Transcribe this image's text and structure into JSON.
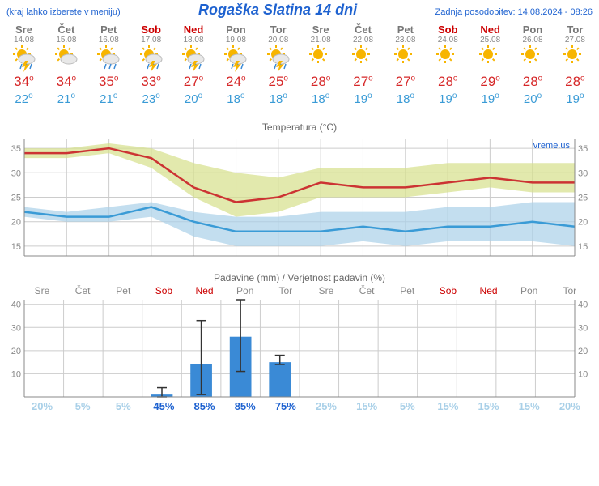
{
  "header": {
    "hint": "(kraj lahko izberete v meniju)",
    "title": "Rogaška Slatina 14 dni",
    "updated_label": "Zadnja posodobitev:",
    "updated_value": "14.08.2024 - 08:26"
  },
  "watermark": "vreme.us",
  "days": [
    {
      "name": "Sre",
      "date": "14.08",
      "weekend": false,
      "icon": "storm",
      "hi": 34,
      "lo": 22
    },
    {
      "name": "Čet",
      "date": "15.08",
      "weekend": false,
      "icon": "sun-cloud",
      "hi": 34,
      "lo": 21
    },
    {
      "name": "Pet",
      "date": "16.08",
      "weekend": false,
      "icon": "sun-cloud-rain",
      "hi": 35,
      "lo": 21
    },
    {
      "name": "Sob",
      "date": "17.08",
      "weekend": true,
      "icon": "storm",
      "hi": 33,
      "lo": 23
    },
    {
      "name": "Ned",
      "date": "18.08",
      "weekend": true,
      "icon": "storm",
      "hi": 27,
      "lo": 20
    },
    {
      "name": "Pon",
      "date": "19.08",
      "weekend": false,
      "icon": "storm",
      "hi": 24,
      "lo": 18
    },
    {
      "name": "Tor",
      "date": "20.08",
      "weekend": false,
      "icon": "storm",
      "hi": 25,
      "lo": 18
    },
    {
      "name": "Sre",
      "date": "21.08",
      "weekend": false,
      "icon": "sun",
      "hi": 28,
      "lo": 18
    },
    {
      "name": "Čet",
      "date": "22.08",
      "weekend": false,
      "icon": "sun",
      "hi": 27,
      "lo": 19
    },
    {
      "name": "Pet",
      "date": "23.08",
      "weekend": false,
      "icon": "sun",
      "hi": 27,
      "lo": 18
    },
    {
      "name": "Sob",
      "date": "24.08",
      "weekend": true,
      "icon": "sun",
      "hi": 28,
      "lo": 19
    },
    {
      "name": "Ned",
      "date": "25.08",
      "weekend": true,
      "icon": "sun",
      "hi": 29,
      "lo": 19
    },
    {
      "name": "Pon",
      "date": "26.08",
      "weekend": false,
      "icon": "sun",
      "hi": 28,
      "lo": 20
    },
    {
      "name": "Tor",
      "date": "27.08",
      "weekend": false,
      "icon": "sun",
      "hi": 28,
      "lo": 19
    }
  ],
  "temp_chart": {
    "title": "Temperatura (°C)",
    "ylim": [
      13,
      37
    ],
    "yticks": [
      15,
      20,
      25,
      30,
      35
    ],
    "grid_color": "#cccccc",
    "axis_color": "#888888",
    "hi_line_color": "#cc3333",
    "lo_line_color": "#3a9bd6",
    "hi_band_color": "#d6e08a",
    "lo_band_color": "#a9d0e8",
    "line_width": 2.5,
    "hi": [
      34,
      34,
      35,
      33,
      27,
      24,
      25,
      28,
      27,
      27,
      28,
      29,
      28,
      28
    ],
    "hi_upper": [
      35,
      35,
      36,
      35,
      32,
      30,
      29,
      31,
      31,
      31,
      32,
      32,
      32,
      32
    ],
    "hi_lower": [
      33,
      33,
      34,
      31,
      25,
      21,
      22,
      25,
      25,
      25,
      26,
      27,
      26,
      26
    ],
    "lo": [
      22,
      21,
      21,
      23,
      20,
      18,
      18,
      18,
      19,
      18,
      19,
      19,
      20,
      19
    ],
    "lo_upper": [
      23,
      22,
      23,
      24,
      22,
      21,
      21,
      22,
      22,
      22,
      23,
      23,
      24,
      24
    ],
    "lo_lower": [
      21,
      20,
      20,
      21,
      17,
      15,
      15,
      15,
      16,
      15,
      16,
      16,
      16,
      15
    ]
  },
  "precip_chart": {
    "title": "Padavine (mm) / Verjetnost padavin (%)",
    "ylim": [
      0,
      42
    ],
    "yticks": [
      10,
      20,
      30,
      40
    ],
    "grid_color": "#cccccc",
    "axis_color": "#888888",
    "bar_color": "#3a8ad6",
    "err_color": "#333333",
    "bar_width": 0.55,
    "mm": [
      0,
      0,
      0,
      1,
      14,
      26,
      15,
      0,
      0,
      0,
      0,
      0,
      0,
      0
    ],
    "err_hi": [
      0,
      0,
      0,
      4,
      33,
      42,
      18,
      0,
      0,
      0,
      0,
      0,
      0,
      0
    ],
    "err_lo": [
      0,
      0,
      0,
      0,
      1,
      11,
      14,
      0,
      0,
      0,
      0,
      0,
      0,
      0
    ],
    "pct": [
      20,
      5,
      5,
      45,
      85,
      85,
      75,
      25,
      15,
      5,
      15,
      15,
      15,
      20
    ],
    "pct_color_faint": "#a9d0e8",
    "pct_color_strong": "#1e62d0",
    "pct_threshold": 40
  }
}
